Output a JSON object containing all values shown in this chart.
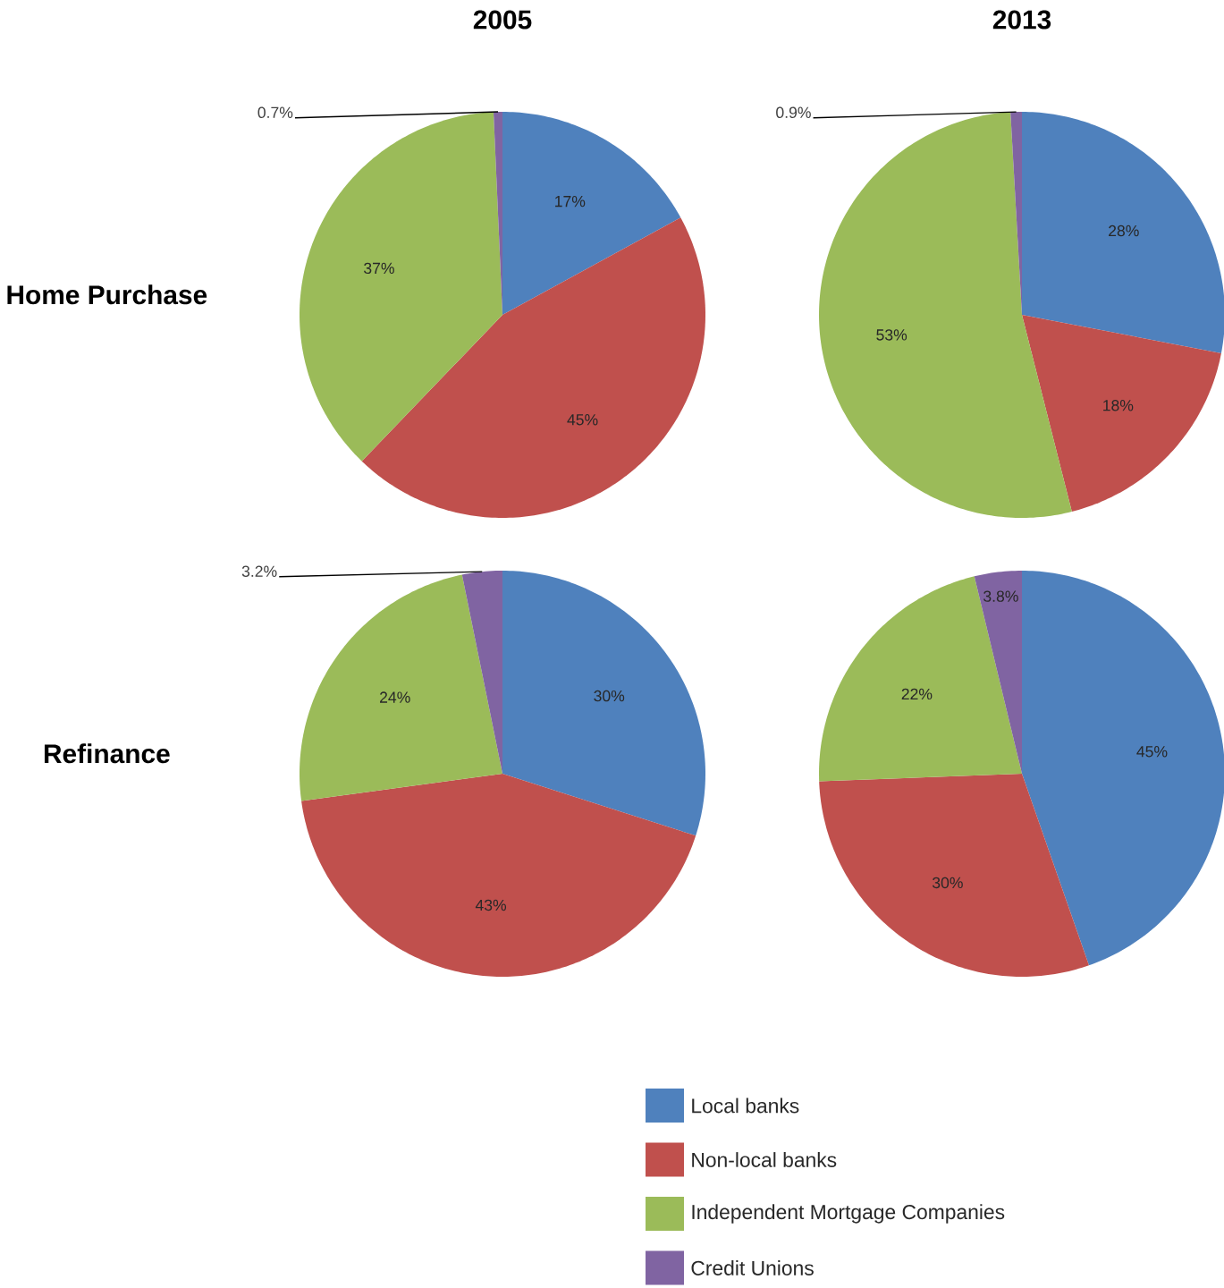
{
  "chart_data": [
    {
      "type": "pie",
      "title": "2005",
      "ylabel": "Home Purchase",
      "categories": [
        null,
        null,
        null,
        null
      ],
      "values": [
        17,
        45,
        37,
        0.7
      ],
      "value_labels": [
        "17%",
        "45%",
        "37%",
        "0.7%"
      ],
      "colors": [
        "#4f81bd",
        "#c0504d",
        "#9bbb59",
        "#8064a2"
      ]
    },
    {
      "type": "pie",
      "title": "2013",
      "categories": [
        null,
        null,
        null,
        null
      ],
      "values": [
        28,
        18,
        53,
        0.9
      ],
      "value_labels": [
        "28%",
        "18%",
        "53%",
        "0.9%"
      ],
      "colors": [
        "#4f81bd",
        "#c0504d",
        "#9bbb59",
        "#8064a2"
      ]
    },
    {
      "type": "pie",
      "ylabel": "Refinance",
      "categories": [
        null,
        null,
        null,
        null
      ],
      "values": [
        30,
        43,
        24,
        3.2
      ],
      "value_labels": [
        "30%",
        "43%",
        "24%",
        "3.2%"
      ],
      "colors": [
        "#4f81bd",
        "#c0504d",
        "#9bbb59",
        "#8064a2"
      ]
    },
    {
      "type": "pie",
      "categories": [
        "Local banks",
        "Non-local banks",
        "Independent Mortgage Companies",
        "Credit Unions"
      ],
      "values": [
        45,
        30,
        22,
        3.8
      ],
      "value_labels": [
        "45%",
        "30%",
        "22%",
        "3.8%"
      ],
      "colors": [
        "#4f81bd",
        "#c0504d",
        "#9bbb59",
        "#8064a2"
      ],
      "legend": "bottom"
    }
  ]
}
